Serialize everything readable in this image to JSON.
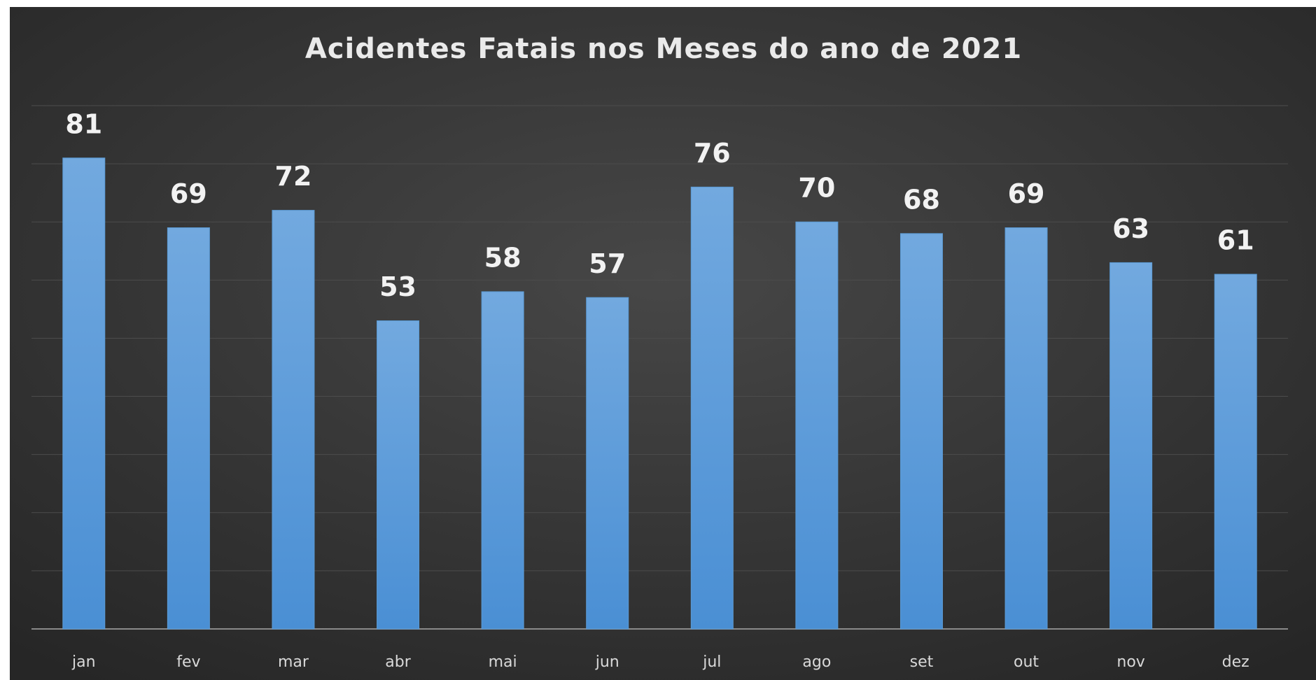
{
  "chart_data": {
    "type": "bar",
    "title": "Acidentes Fatais nos Meses do ano de 2021",
    "categories": [
      "jan",
      "fev",
      "mar",
      "abr",
      "mai",
      "jun",
      "jul",
      "ago",
      "set",
      "out",
      "nov",
      "dez"
    ],
    "values": [
      81,
      69,
      72,
      53,
      58,
      57,
      76,
      70,
      68,
      69,
      63,
      61
    ],
    "color": "#5b9bd5",
    "ylim": [
      0,
      90
    ],
    "yticks": [
      0,
      10,
      20,
      30,
      40,
      50,
      60,
      70,
      80,
      90
    ],
    "grid": true
  }
}
